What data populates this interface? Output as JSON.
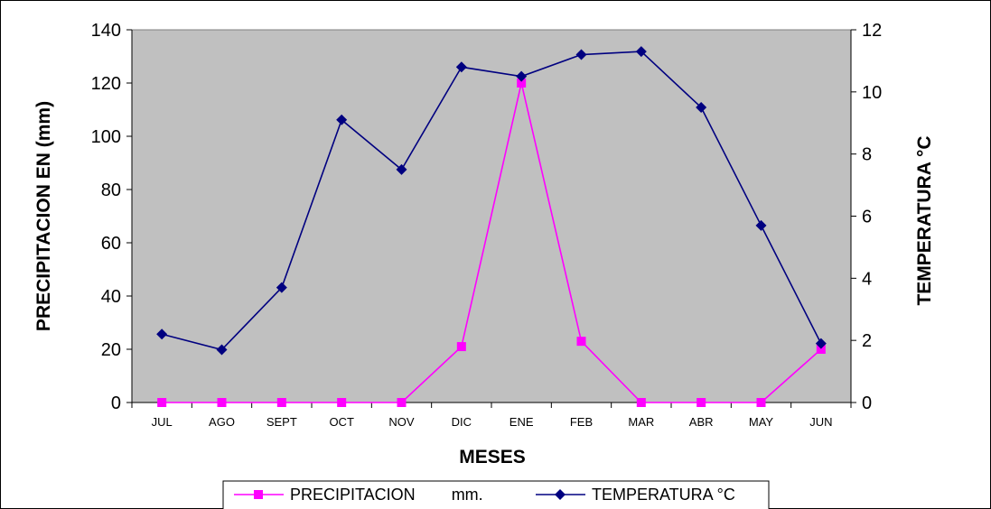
{
  "chart_data": {
    "type": "line",
    "categories": [
      "JUL",
      "AGO",
      "SEPT",
      "OCT",
      "NOV",
      "DIC",
      "ENE",
      "FEB",
      "MAR",
      "ABR",
      "MAY",
      "JUN"
    ],
    "xlabel": "MESES",
    "ylabel": "PRECIPITACION EN (mm)",
    "y2label": "TEMPERATURA °C",
    "ylim": [
      0,
      140
    ],
    "y2lim": [
      0,
      12
    ],
    "yticks": [
      "0",
      "20",
      "40",
      "60",
      "80",
      "100",
      "120",
      "140"
    ],
    "y2ticks": [
      "0",
      "2",
      "4",
      "6",
      "8",
      "10",
      "12"
    ],
    "grid": false,
    "legend_position": "bottom",
    "series": [
      {
        "name": "PRECIPITACION        mm.",
        "axis": "left",
        "color": "#ff00ff",
        "marker": "square",
        "values": [
          0,
          0,
          0,
          0,
          0,
          21,
          120,
          23,
          0,
          0,
          0,
          20
        ]
      },
      {
        "name": "TEMPERATURA °C",
        "axis": "right",
        "color": "#000080",
        "marker": "diamond",
        "values": [
          2.2,
          1.7,
          3.7,
          9.1,
          7.5,
          10.8,
          10.5,
          11.2,
          11.3,
          9.5,
          5.7,
          1.9
        ]
      }
    ],
    "plot_background": "#c0c0c0"
  }
}
